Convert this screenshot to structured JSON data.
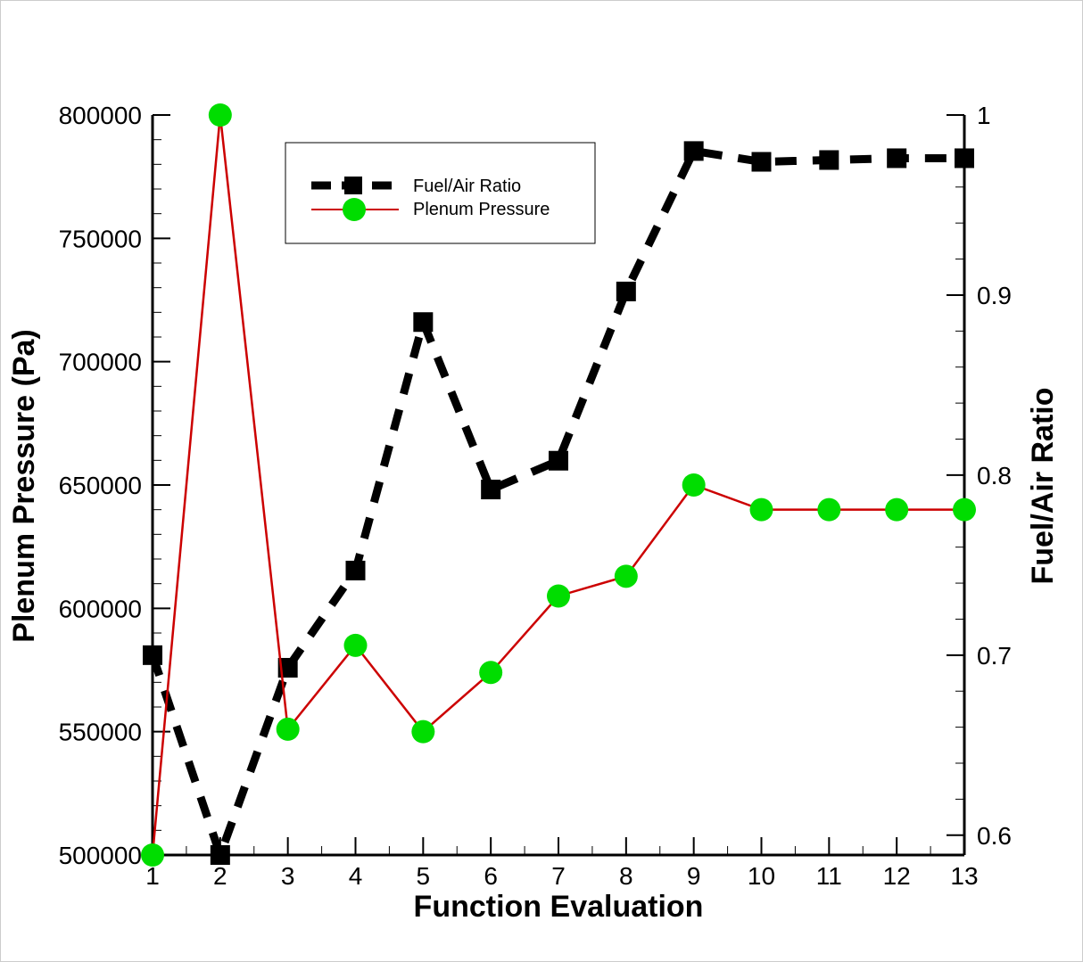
{
  "chart_data": {
    "type": "line",
    "xlabel": "Function Evaluation",
    "ylabel_left": "Plenum Pressure (Pa)",
    "ylabel_right": "Fuel/Air Ratio",
    "x": [
      1,
      2,
      3,
      4,
      5,
      6,
      7,
      8,
      9,
      10,
      11,
      12,
      13
    ],
    "xlim": [
      1,
      13
    ],
    "ylim_left": [
      500000,
      800000
    ],
    "ylim_right": [
      0.589,
      1.0
    ],
    "x_ticks": [
      "1",
      "2",
      "3",
      "4",
      "5",
      "6",
      "7",
      "8",
      "9",
      "10",
      "11",
      "12",
      "13"
    ],
    "y_ticks_left": [
      "500000",
      "550000",
      "600000",
      "650000",
      "700000",
      "750000",
      "800000"
    ],
    "y_ticks_right": [
      "0.6",
      "0.7",
      "0.8",
      "0.9",
      "1"
    ],
    "legend_position": "top-center",
    "grid": false,
    "series": [
      {
        "name": "Fuel/Air Ratio",
        "axis": "right",
        "color": "#000000",
        "line_style": "dashed",
        "marker": "square",
        "values": [
          0.7,
          0.589,
          0.693,
          0.747,
          0.885,
          0.792,
          0.808,
          0.902,
          0.98,
          0.974,
          0.975,
          0.976,
          0.976
        ]
      },
      {
        "name": "Plenum Pressure",
        "axis": "left",
        "color": "#cc0000",
        "marker_color": "#00dd00",
        "line_style": "solid",
        "marker": "circle",
        "values": [
          500000,
          800000,
          551000,
          585000,
          550000,
          574000,
          605000,
          613000,
          650000,
          640000,
          640000,
          640000,
          640000
        ]
      }
    ]
  }
}
